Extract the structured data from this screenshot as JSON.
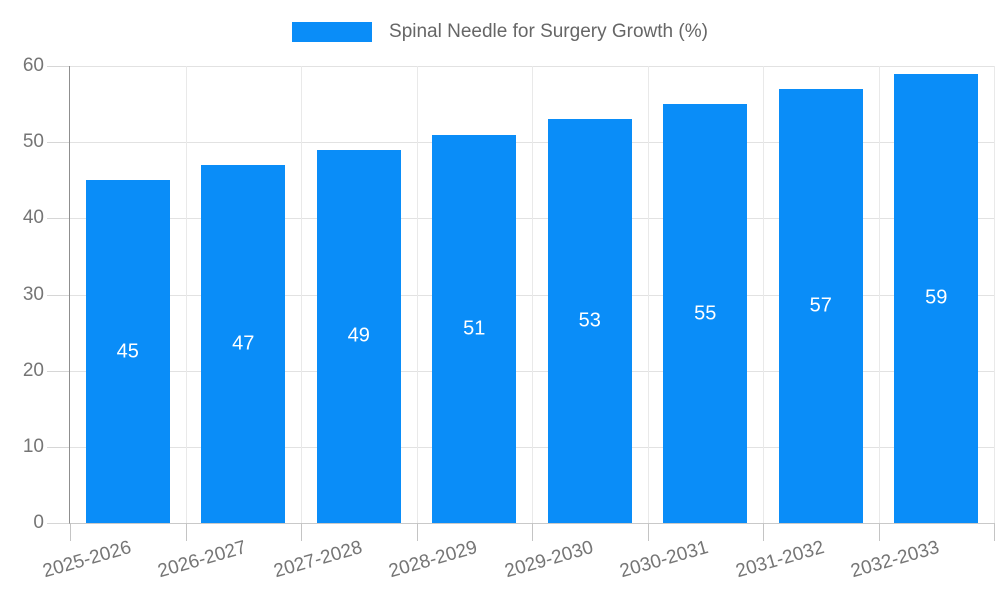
{
  "chart_data": {
    "type": "bar",
    "title": "Spinal Needle for Surgery Growth (%)",
    "categories": [
      "2025-2026",
      "2026-2027",
      "2027-2028",
      "2028-2029",
      "2029-2030",
      "2030-2031",
      "2031-2032",
      "2032-2033"
    ],
    "values": [
      45,
      47,
      49,
      51,
      53,
      55,
      57,
      59
    ],
    "xlabel": "",
    "ylabel": "",
    "ylim": [
      0,
      60
    ],
    "ytick_step": 10,
    "yticks": [
      0,
      10,
      20,
      30,
      40,
      50,
      60
    ],
    "grid": "horizontal and vertical light gray gridlines",
    "legend_position": "top-center",
    "bar_color": "#0a8df8",
    "bar_value_label_color": "#ffffff",
    "axis_text_color": "#757575",
    "legend_text_color": "#666666"
  }
}
